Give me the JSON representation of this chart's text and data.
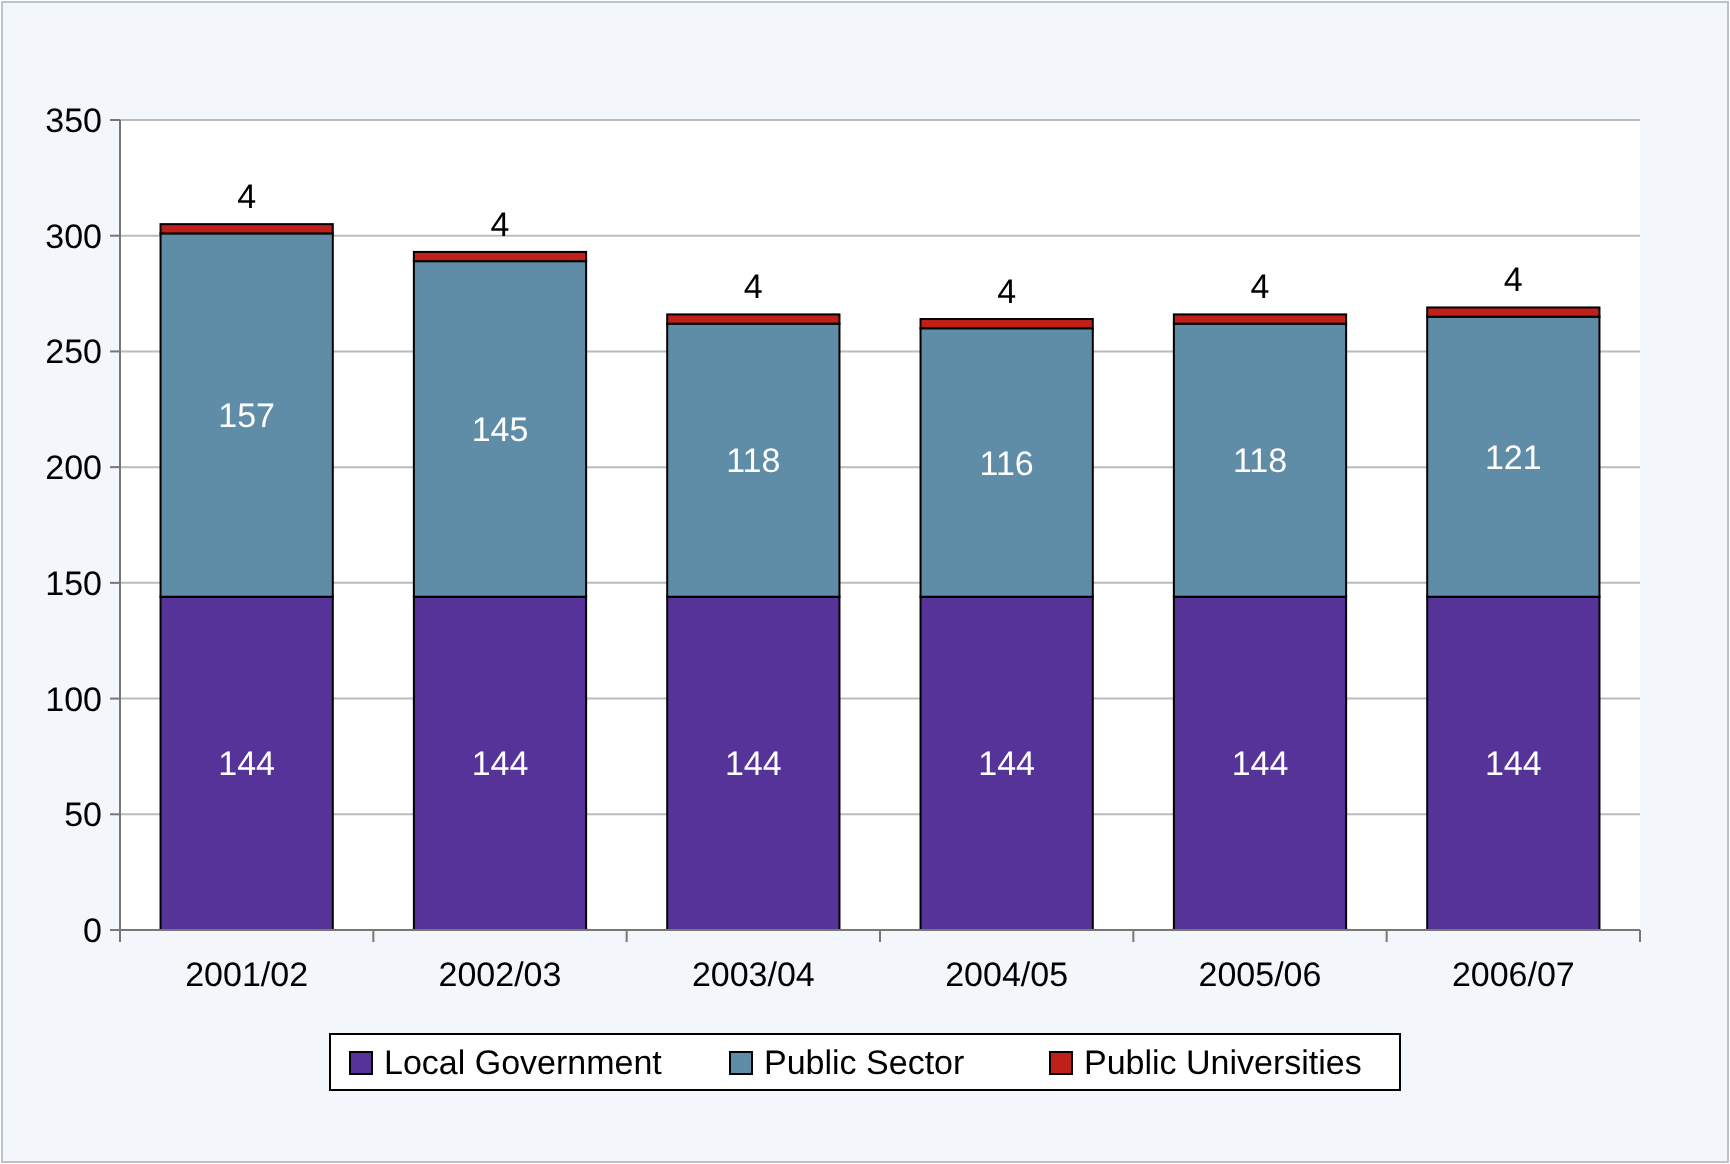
{
  "chart_data": {
    "type": "bar",
    "stacked": true,
    "categories": [
      "2001/02",
      "2002/03",
      "2003/04",
      "2004/05",
      "2005/06",
      "2006/07"
    ],
    "series": [
      {
        "name": "Local Government",
        "color": "#553399",
        "values": [
          144,
          144,
          144,
          144,
          144,
          144
        ]
      },
      {
        "name": "Public Sector",
        "color": "#5f8ca6",
        "values": [
          157,
          145,
          118,
          116,
          118,
          121
        ]
      },
      {
        "name": "Public Universities",
        "color": "#c0201a",
        "values": [
          4,
          4,
          4,
          4,
          4,
          4
        ]
      }
    ],
    "ylim": [
      0,
      350
    ],
    "yticks": [
      0,
      50,
      100,
      150,
      200,
      250,
      300,
      350
    ],
    "grid": "y",
    "legend": "bottom",
    "data_labels": true
  }
}
